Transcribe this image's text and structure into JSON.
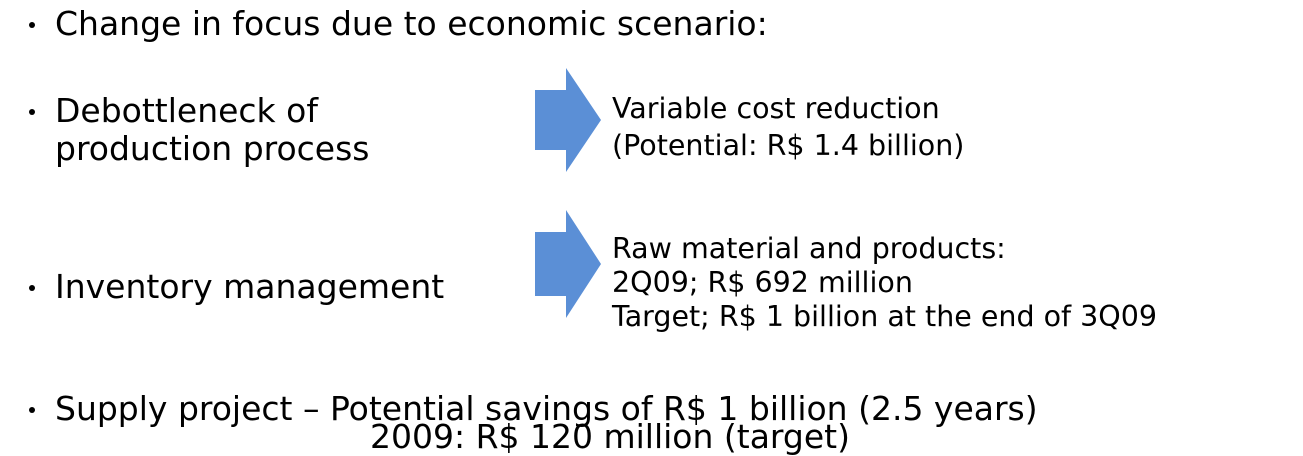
{
  "bullets": [
    {
      "lines": [
        "Change in focus due to economic scenario:"
      ]
    },
    {
      "lines": [
        "Debottleneck of",
        "production process"
      ],
      "result": [
        "Variable cost reduction",
        "(Potential: R$ 1.4 billion)"
      ]
    },
    {
      "lines": [
        "Inventory management"
      ],
      "result": [
        "Raw material and products:",
        "2Q09; R$ 692 million",
        "Target; R$ 1 billion at the end of 3Q09"
      ]
    },
    {
      "lines": [
        "Supply project – Potential savings of R$ 1 billion (2.5 years)",
        "2009: R$ 120 million (target)"
      ]
    }
  ]
}
